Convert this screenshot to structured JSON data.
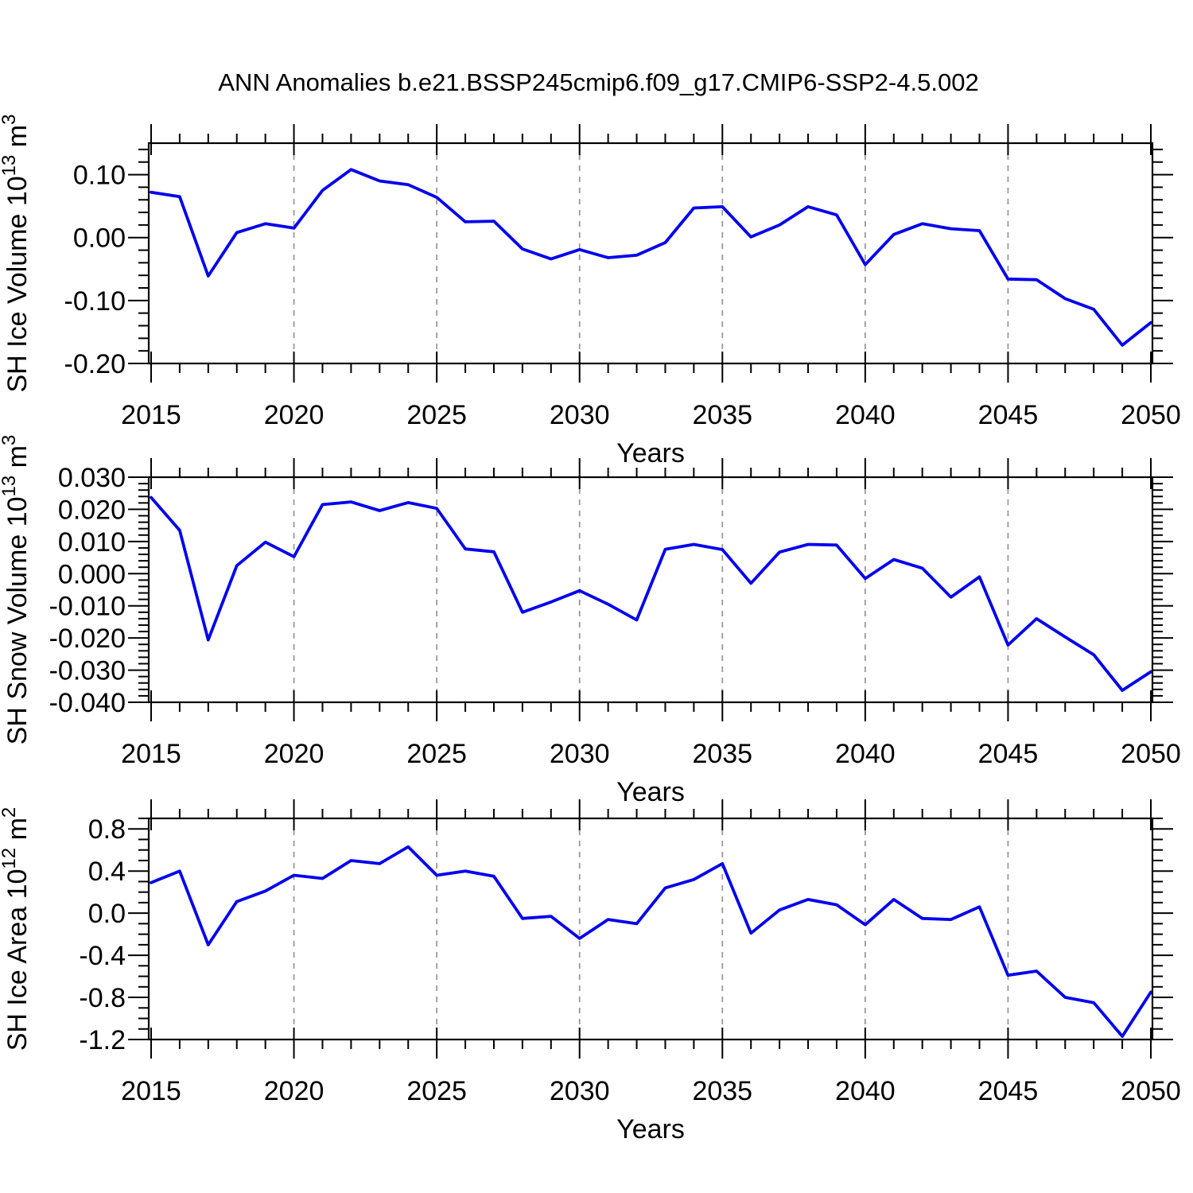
{
  "title": "ANN Anomalies b.e21.BSSP245cmip6.f09_g17.CMIP6-SSP2-4.5.002",
  "accent_colors": {
    "line": "#0000ee",
    "grid": "#999999",
    "frame": "#000000"
  },
  "chart_data": [
    {
      "type": "line",
      "name": "sh-ice-volume",
      "ylabel_text": "SH Ice Volume 10^13 m^3",
      "ylabel_parts": [
        {
          "t": "SH Ice Volume 10",
          "sup": false
        },
        {
          "t": "13",
          "sup": true
        },
        {
          "t": " m",
          "sup": false
        },
        {
          "t": "3",
          "sup": true
        }
      ],
      "xlabel": "Years",
      "x": [
        2015,
        2016,
        2017,
        2018,
        2019,
        2020,
        2021,
        2022,
        2023,
        2024,
        2025,
        2026,
        2027,
        2028,
        2029,
        2030,
        2031,
        2032,
        2033,
        2034,
        2035,
        2036,
        2037,
        2038,
        2039,
        2040,
        2041,
        2042,
        2043,
        2044,
        2045,
        2046,
        2047,
        2048,
        2049,
        2050
      ],
      "values": [
        0.072,
        0.065,
        -0.061,
        0.008,
        0.022,
        0.015,
        0.075,
        0.108,
        0.09,
        0.084,
        0.064,
        0.025,
        0.026,
        -0.018,
        -0.034,
        -0.019,
        -0.032,
        -0.028,
        -0.008,
        0.047,
        0.049,
        0.001,
        0.02,
        0.049,
        0.036,
        -0.043,
        0.005,
        0.022,
        0.014,
        0.011,
        -0.066,
        -0.067,
        -0.097,
        -0.114,
        -0.171,
        -0.135
      ],
      "ylim": [
        -0.2,
        0.15
      ],
      "xlim": [
        2015,
        2050
      ],
      "y_major_ticks": [
        0.1,
        0.0,
        -0.1,
        -0.2
      ],
      "y_tick_labels": [
        "0.10",
        "0.00",
        "-0.10",
        "-0.20"
      ],
      "y_minor_step": 0.02,
      "x_major_ticks": [
        2015,
        2020,
        2025,
        2030,
        2035,
        2040,
        2045,
        2050
      ],
      "x_tick_labels": [
        "2015",
        "2020",
        "2025",
        "2030",
        "2035",
        "2040",
        "2045",
        "2050"
      ],
      "grid_years": [
        2020,
        2025,
        2030,
        2035,
        2040,
        2045
      ],
      "grid": "vertical-dashed",
      "legend": "none",
      "line_color": "#0000ee"
    },
    {
      "type": "line",
      "name": "sh-snow-volume",
      "ylabel_text": "SH Snow Volume 10^13 m^3",
      "ylabel_parts": [
        {
          "t": "SH Snow Volume 10",
          "sup": false
        },
        {
          "t": "13",
          "sup": true
        },
        {
          "t": " m",
          "sup": false
        },
        {
          "t": "3",
          "sup": true
        }
      ],
      "xlabel": "Years",
      "x": [
        2015,
        2016,
        2017,
        2018,
        2019,
        2020,
        2021,
        2022,
        2023,
        2024,
        2025,
        2026,
        2027,
        2028,
        2029,
        2030,
        2031,
        2032,
        2033,
        2034,
        2035,
        2036,
        2037,
        2038,
        2039,
        2040,
        2041,
        2042,
        2043,
        2044,
        2045,
        2046,
        2047,
        2048,
        2049,
        2050
      ],
      "values": [
        0.0237,
        0.0135,
        -0.0206,
        0.0025,
        0.0098,
        0.0053,
        0.0215,
        0.0223,
        0.0196,
        0.0221,
        0.0203,
        0.0077,
        0.0068,
        -0.012,
        -0.0088,
        -0.0053,
        -0.0095,
        -0.0144,
        0.0076,
        0.0091,
        0.0075,
        -0.003,
        0.0067,
        0.0091,
        0.0089,
        -0.0015,
        0.0044,
        0.0017,
        -0.0073,
        -0.001,
        -0.0222,
        -0.014,
        -0.0197,
        -0.0252,
        -0.0363,
        -0.0305
      ],
      "ylim": [
        -0.04,
        0.03
      ],
      "xlim": [
        2015,
        2050
      ],
      "y_major_ticks": [
        0.03,
        0.02,
        0.01,
        0.0,
        -0.01,
        -0.02,
        -0.03,
        -0.04
      ],
      "y_tick_labels": [
        "0.030",
        "0.020",
        "0.010",
        "0.000",
        "-0.010",
        "-0.020",
        "-0.030",
        "-0.040"
      ],
      "y_minor_step": 0.002,
      "x_major_ticks": [
        2015,
        2020,
        2025,
        2030,
        2035,
        2040,
        2045,
        2050
      ],
      "x_tick_labels": [
        "2015",
        "2020",
        "2025",
        "2030",
        "2035",
        "2040",
        "2045",
        "2050"
      ],
      "grid_years": [
        2020,
        2025,
        2030,
        2035,
        2040,
        2045
      ],
      "grid": "vertical-dashed",
      "legend": "none",
      "line_color": "#0000ee"
    },
    {
      "type": "line",
      "name": "sh-ice-area",
      "ylabel_text": "SH Ice Area 10^12 m^2",
      "ylabel_parts": [
        {
          "t": "SH Ice Area 10",
          "sup": false
        },
        {
          "t": "12",
          "sup": true
        },
        {
          "t": " m",
          "sup": false
        },
        {
          "t": "2",
          "sup": true
        }
      ],
      "xlabel": "Years",
      "x": [
        2015,
        2016,
        2017,
        2018,
        2019,
        2020,
        2021,
        2022,
        2023,
        2024,
        2025,
        2026,
        2027,
        2028,
        2029,
        2030,
        2031,
        2032,
        2033,
        2034,
        2035,
        2036,
        2037,
        2038,
        2039,
        2040,
        2041,
        2042,
        2043,
        2044,
        2045,
        2046,
        2047,
        2048,
        2049,
        2050
      ],
      "values": [
        0.29,
        0.4,
        -0.3,
        0.11,
        0.21,
        0.36,
        0.33,
        0.5,
        0.47,
        0.63,
        0.36,
        0.4,
        0.35,
        -0.05,
        -0.03,
        -0.24,
        -0.06,
        -0.1,
        0.24,
        0.32,
        0.47,
        -0.19,
        0.03,
        0.13,
        0.08,
        -0.11,
        0.13,
        -0.05,
        -0.06,
        0.06,
        -0.59,
        -0.55,
        -0.8,
        -0.85,
        -1.17,
        -0.75
      ],
      "ylim": [
        -1.2,
        0.9
      ],
      "xlim": [
        2015,
        2050
      ],
      "y_major_ticks": [
        0.8,
        0.4,
        0.0,
        -0.4,
        -0.8,
        -1.2
      ],
      "y_tick_labels": [
        "0.8",
        "0.4",
        "0.0",
        "-0.4",
        "-0.8",
        "-1.2"
      ],
      "y_minor_step": 0.1,
      "x_major_ticks": [
        2015,
        2020,
        2025,
        2030,
        2035,
        2040,
        2045,
        2050
      ],
      "x_tick_labels": [
        "2015",
        "2020",
        "2025",
        "2030",
        "2035",
        "2040",
        "2045",
        "2050"
      ],
      "grid_years": [
        2020,
        2025,
        2030,
        2035,
        2040,
        2045
      ],
      "grid": "vertical-dashed",
      "legend": "none",
      "line_color": "#0000ee"
    }
  ]
}
